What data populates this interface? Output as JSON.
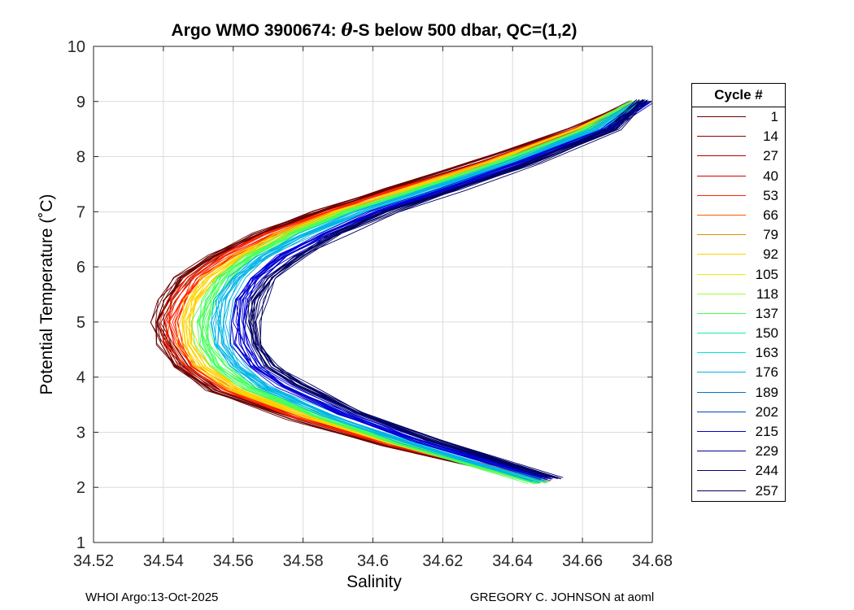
{
  "title": {
    "prefix": "Argo WMO 3900674: ",
    "theta": "θ",
    "suffix": "-S below 500 dbar,  QC=(1,2)"
  },
  "footer": {
    "left": "WHOI Argo:13-Oct-2025",
    "right": "GREGORY C. JOHNSON at aoml"
  },
  "chart_data": {
    "type": "line",
    "title": "Argo WMO 3900674: θ-S below 500 dbar,  QC=(1,2)",
    "xlabel": "Salinity",
    "ylabel": "Potential Temperature (˚C)",
    "xlim": [
      34.52,
      34.68
    ],
    "ylim": [
      1,
      10
    ],
    "xticks": [
      "34.52",
      "34.54",
      "34.56",
      "34.58",
      "34.6",
      "34.62",
      "34.64",
      "34.66",
      "34.68"
    ],
    "yticks": [
      "1",
      "2",
      "3",
      "4",
      "5",
      "6",
      "7",
      "8",
      "9",
      "10"
    ],
    "grid": true,
    "legend": {
      "title": "Cycle #",
      "placement": "right",
      "entries": [
        {
          "label": "1",
          "color": "#6b0000"
        },
        {
          "label": "14",
          "color": "#8c0000"
        },
        {
          "label": "27",
          "color": "#b30000"
        },
        {
          "label": "40",
          "color": "#d90000"
        },
        {
          "label": "53",
          "color": "#ff2600"
        },
        {
          "label": "66",
          "color": "#ff5a00"
        },
        {
          "label": "79",
          "color": "#d99000"
        },
        {
          "label": "92",
          "color": "#ffd200"
        },
        {
          "label": "105",
          "color": "#e6f000"
        },
        {
          "label": "118",
          "color": "#9bff3c"
        },
        {
          "label": "137",
          "color": "#46ff5a"
        },
        {
          "label": "150",
          "color": "#14f0a0"
        },
        {
          "label": "163",
          "color": "#00e6d2"
        },
        {
          "label": "176",
          "color": "#00b4e6"
        },
        {
          "label": "189",
          "color": "#0078c8"
        },
        {
          "label": "202",
          "color": "#0046c8"
        },
        {
          "label": "215",
          "color": "#0000d2"
        },
        {
          "label": "229",
          "color": "#000096"
        },
        {
          "label": "244",
          "color": "#000078"
        },
        {
          "label": "257",
          "color": "#000064"
        }
      ]
    },
    "series": [
      {
        "name": "1",
        "color": "#6b0000",
        "points": [
          [
            34.648,
            2.12
          ],
          [
            34.605,
            2.75
          ],
          [
            34.578,
            3.25
          ],
          [
            34.555,
            3.75
          ],
          [
            34.545,
            4.2
          ],
          [
            34.541,
            4.6
          ],
          [
            34.539,
            5.0
          ],
          [
            34.541,
            5.4
          ],
          [
            34.546,
            5.8
          ],
          [
            34.555,
            6.2
          ],
          [
            34.568,
            6.6
          ],
          [
            34.585,
            7.0
          ],
          [
            34.605,
            7.4
          ],
          [
            34.63,
            7.9
          ],
          [
            34.658,
            8.5
          ],
          [
            34.676,
            9.0
          ]
        ]
      },
      {
        "name": "53",
        "color": "#ff2600",
        "points": [
          [
            34.649,
            2.14
          ],
          [
            34.606,
            2.77
          ],
          [
            34.579,
            3.27
          ],
          [
            34.558,
            3.77
          ],
          [
            34.547,
            4.2
          ],
          [
            34.543,
            4.6
          ],
          [
            34.542,
            5.0
          ],
          [
            34.544,
            5.4
          ],
          [
            34.549,
            5.8
          ],
          [
            34.558,
            6.2
          ],
          [
            34.571,
            6.6
          ],
          [
            34.588,
            7.0
          ],
          [
            34.608,
            7.4
          ],
          [
            34.633,
            7.9
          ],
          [
            34.66,
            8.5
          ],
          [
            34.676,
            9.0
          ]
        ]
      },
      {
        "name": "92",
        "color": "#ffd200",
        "points": [
          [
            34.648,
            2.1
          ],
          [
            34.607,
            2.78
          ],
          [
            34.581,
            3.28
          ],
          [
            34.561,
            3.78
          ],
          [
            34.551,
            4.2
          ],
          [
            34.547,
            4.6
          ],
          [
            34.546,
            5.0
          ],
          [
            34.548,
            5.4
          ],
          [
            34.553,
            5.8
          ],
          [
            34.562,
            6.2
          ],
          [
            34.574,
            6.6
          ],
          [
            34.59,
            7.0
          ],
          [
            34.61,
            7.4
          ],
          [
            34.635,
            7.9
          ],
          [
            34.66,
            8.5
          ],
          [
            34.676,
            9.0
          ]
        ]
      },
      {
        "name": "137",
        "color": "#46ff5a",
        "points": [
          [
            34.647,
            2.08
          ],
          [
            34.608,
            2.8
          ],
          [
            34.584,
            3.3
          ],
          [
            34.565,
            3.8
          ],
          [
            34.556,
            4.2
          ],
          [
            34.552,
            4.6
          ],
          [
            34.551,
            5.0
          ],
          [
            34.553,
            5.4
          ],
          [
            34.557,
            5.8
          ],
          [
            34.565,
            6.2
          ],
          [
            34.577,
            6.6
          ],
          [
            34.593,
            7.0
          ],
          [
            34.613,
            7.4
          ],
          [
            34.637,
            7.9
          ],
          [
            34.662,
            8.5
          ],
          [
            34.676,
            9.0
          ]
        ]
      },
      {
        "name": "176",
        "color": "#00b4e6",
        "points": [
          [
            34.648,
            2.1
          ],
          [
            34.61,
            2.82
          ],
          [
            34.587,
            3.32
          ],
          [
            34.569,
            3.82
          ],
          [
            34.561,
            4.2
          ],
          [
            34.557,
            4.6
          ],
          [
            34.556,
            5.0
          ],
          [
            34.557,
            5.4
          ],
          [
            34.561,
            5.8
          ],
          [
            34.569,
            6.2
          ],
          [
            34.581,
            6.6
          ],
          [
            34.597,
            7.0
          ],
          [
            34.616,
            7.4
          ],
          [
            34.64,
            7.9
          ],
          [
            34.664,
            8.5
          ],
          [
            34.677,
            9.0
          ]
        ]
      },
      {
        "name": "215",
        "color": "#0000d2",
        "points": [
          [
            34.65,
            2.16
          ],
          [
            34.613,
            2.84
          ],
          [
            34.591,
            3.34
          ],
          [
            34.574,
            3.84
          ],
          [
            34.566,
            4.2
          ],
          [
            34.562,
            4.6
          ],
          [
            34.561,
            5.0
          ],
          [
            34.562,
            5.4
          ],
          [
            34.566,
            5.8
          ],
          [
            34.574,
            6.2
          ],
          [
            34.586,
            6.6
          ],
          [
            34.601,
            7.0
          ],
          [
            34.62,
            7.4
          ],
          [
            34.643,
            7.9
          ],
          [
            34.667,
            8.5
          ],
          [
            34.678,
            9.0
          ]
        ]
      },
      {
        "name": "257",
        "color": "#000064",
        "points": [
          [
            34.652,
            2.17
          ],
          [
            34.617,
            2.86
          ],
          [
            34.596,
            3.36
          ],
          [
            34.579,
            3.86
          ],
          [
            34.571,
            4.2
          ],
          [
            34.567,
            4.6
          ],
          [
            34.566,
            5.0
          ],
          [
            34.567,
            5.4
          ],
          [
            34.571,
            5.8
          ],
          [
            34.579,
            6.2
          ],
          [
            34.59,
            6.6
          ],
          [
            34.605,
            7.0
          ],
          [
            34.624,
            7.4
          ],
          [
            34.646,
            7.9
          ],
          [
            34.669,
            8.5
          ],
          [
            34.678,
            9.02
          ]
        ]
      }
    ]
  }
}
